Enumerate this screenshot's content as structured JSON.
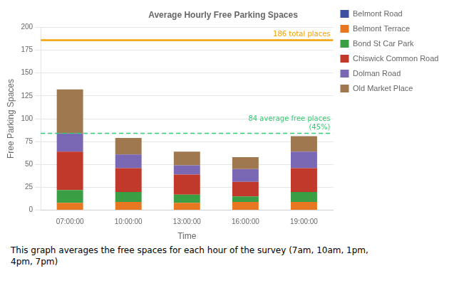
{
  "chart_data": {
    "type": "bar",
    "stacked": true,
    "title": "Average Hourly Free Parking Spaces",
    "xlabel": "Time",
    "ylabel": "Free Parking Spaces",
    "categories": [
      "07:00:00",
      "10:00:00",
      "13:00:00",
      "16:00:00",
      "19:00:00"
    ],
    "series": [
      {
        "name": "Belmont Road",
        "color": "#3c4fa0",
        "values": [
          0,
          0,
          0,
          0,
          0
        ]
      },
      {
        "name": "Belmont Terrace",
        "color": "#e87722",
        "values": [
          8,
          9,
          8,
          9,
          9
        ]
      },
      {
        "name": "Bond St Car Park",
        "color": "#3a9e44",
        "values": [
          14,
          11,
          9,
          6,
          11
        ]
      },
      {
        "name": "Chiswick Common Road",
        "color": "#c0392b",
        "values": [
          42,
          26,
          22,
          16,
          26
        ]
      },
      {
        "name": "Dolman Road",
        "color": "#7b68b5",
        "values": [
          20,
          15,
          10,
          14,
          18
        ]
      },
      {
        "name": "Old Market Place",
        "color": "#a07850",
        "values": [
          48,
          18,
          15,
          13,
          17
        ]
      }
    ],
    "annotations": [
      {
        "text": "186 total places",
        "y": 186,
        "color": "#f5a000",
        "line_style": "solid"
      },
      {
        "text": "84 average free places\n(45%)",
        "y": 84,
        "color": "#2ecc71",
        "line_style": "dashed"
      }
    ],
    "caption": "This graph averages the free spaces for each hour of the survey (7am, 10am, 1pm,\n4pm, 7pm)",
    "ylim": [
      0,
      200
    ],
    "yticks": [
      0,
      25,
      50,
      75,
      100,
      125,
      150,
      175,
      200
    ],
    "grid": true,
    "legend": "right"
  }
}
